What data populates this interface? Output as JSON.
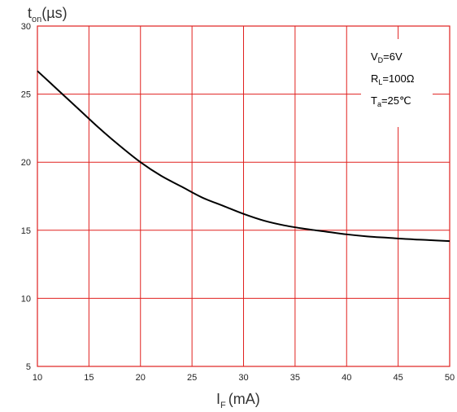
{
  "chart_data": {
    "type": "line",
    "title": "",
    "ylabel": {
      "main": "t",
      "sub": "on",
      "unit": "(µs)"
    },
    "xlabel": {
      "main": "I",
      "sub": "F",
      "unit": "(mA)"
    },
    "xlim": [
      10,
      50
    ],
    "ylim": [
      5,
      30
    ],
    "x_ticks": [
      "10",
      "15",
      "20",
      "25",
      "30",
      "35",
      "40",
      "45",
      "50"
    ],
    "y_ticks": [
      "5",
      "10",
      "15",
      "20",
      "25",
      "30"
    ],
    "grid": true,
    "colors": {
      "grid": "#e0201f",
      "line": "#000000",
      "frame": "#e0201f"
    },
    "series": [
      {
        "x": [
          10,
          12,
          14,
          16,
          18,
          20,
          22,
          24,
          26,
          28,
          30,
          32,
          34,
          36,
          38,
          40,
          42,
          44,
          46,
          48,
          50
        ],
        "y": [
          26.7,
          25.3,
          23.9,
          22.5,
          21.2,
          20.0,
          19.0,
          18.2,
          17.4,
          16.8,
          16.2,
          15.7,
          15.35,
          15.1,
          14.9,
          14.7,
          14.55,
          14.45,
          14.35,
          14.28,
          14.2
        ]
      }
    ],
    "annotations": [
      {
        "main": "V",
        "sub": "D",
        "rest": "=6V"
      },
      {
        "main": "R",
        "sub": "L",
        "rest": "=100Ω"
      },
      {
        "main": "T",
        "sub": "a",
        "rest": "=25℃"
      }
    ],
    "legend_position": "top-right"
  }
}
